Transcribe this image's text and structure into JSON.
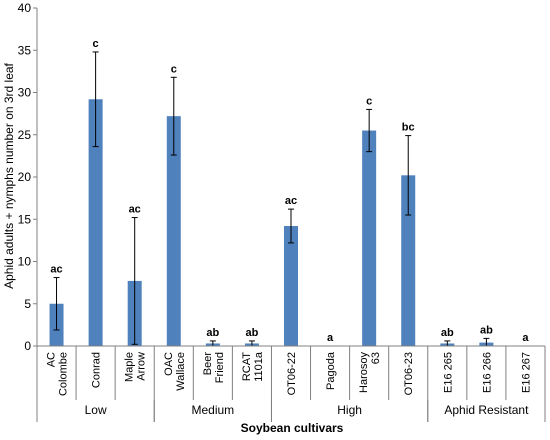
{
  "chart_data": {
    "type": "bar",
    "title": "",
    "xlabel": "Soybean cultivars",
    "ylabel": "Aphid adults + nymphs number on 3rd leaf",
    "ylim": [
      0,
      40
    ],
    "yticks": [
      0,
      5,
      10,
      15,
      20,
      25,
      30,
      35,
      40
    ],
    "grid": false,
    "legend": "none",
    "bar_color": "#4f81bd",
    "categories": [
      {
        "lines": [
          "AC",
          "Colombe"
        ],
        "value": 5.0,
        "error": 3.1,
        "letter": "ac"
      },
      {
        "lines": [
          "Conrad"
        ],
        "value": 29.2,
        "error": 5.6,
        "letter": "c"
      },
      {
        "lines": [
          "Maple",
          "Arrow"
        ],
        "value": 7.7,
        "error": 7.5,
        "letter": "ac"
      },
      {
        "lines": [
          "OAC",
          "Wallace"
        ],
        "value": 27.2,
        "error": 4.6,
        "letter": "c"
      },
      {
        "lines": [
          "Beer",
          "Friend"
        ],
        "value": 0.3,
        "error": 0.3,
        "letter": "ab"
      },
      {
        "lines": [
          "RCAT",
          "1101a"
        ],
        "value": 0.3,
        "error": 0.3,
        "letter": "ab"
      },
      {
        "lines": [
          "OT06-22"
        ],
        "value": 14.2,
        "error": 2.0,
        "letter": "ac"
      },
      {
        "lines": [
          "Pagoda"
        ],
        "value": 0,
        "error": 0,
        "letter": "a"
      },
      {
        "lines": [
          "Harosoy",
          "63"
        ],
        "value": 25.5,
        "error": 2.5,
        "letter": "c"
      },
      {
        "lines": [
          "OT06-23"
        ],
        "value": 20.2,
        "error": 4.7,
        "letter": "bc"
      },
      {
        "lines": [
          "E16 265"
        ],
        "value": 0.3,
        "error": 0.3,
        "letter": "ab"
      },
      {
        "lines": [
          "E16 266"
        ],
        "value": 0.4,
        "error": 0.5,
        "letter": "ab"
      },
      {
        "lines": [
          "E16 267"
        ],
        "value": 0,
        "error": 0,
        "letter": "a"
      }
    ],
    "groups": [
      {
        "label": "Low",
        "start": 0,
        "end": 2
      },
      {
        "label": "Medium",
        "start": 3,
        "end": 5
      },
      {
        "label": "High",
        "start": 6,
        "end": 9
      },
      {
        "label": "Aphid Resistant",
        "start": 10,
        "end": 12
      }
    ]
  }
}
